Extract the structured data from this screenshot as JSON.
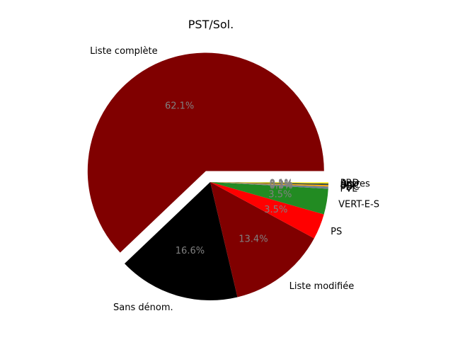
{
  "chart_data": {
    "type": "pie",
    "title": "PST/Sol.",
    "slices": [
      {
        "label": "Liste complète",
        "value": 62.1,
        "pct_label": "62.1%",
        "color": "#800000",
        "explode": true
      },
      {
        "label": "Sans dénom.",
        "value": 16.6,
        "pct_label": "16.6%",
        "color": "#000000",
        "explode": false
      },
      {
        "label": "Liste modifiée",
        "value": 13.4,
        "pct_label": "13.4%",
        "color": "#800000",
        "explode": false
      },
      {
        "label": "PS",
        "value": 3.5,
        "pct_label": "3.5%",
        "color": "#ff0000",
        "explode": false
      },
      {
        "label": "VERT-E-S",
        "value": 3.5,
        "pct_label": "3.5%",
        "color": "#228b22",
        "explode": false
      },
      {
        "label": "PVL",
        "value": 0.3,
        "pct_label": "0.3%",
        "color": "#708090",
        "explode": false
      },
      {
        "label": "PDC",
        "value": 0.2,
        "pct_label": "0.2%",
        "color": "#ffa500",
        "explode": false
      },
      {
        "label": "UDC",
        "value": 0.2,
        "pct_label": "0.2%",
        "color": "#2f4f4f",
        "explode": false
      },
      {
        "label": "Autres",
        "value": 0.1,
        "pct_label": "0.1%",
        "color": "#ffd700",
        "explode": false
      },
      {
        "label": "PBD",
        "value": 0.1,
        "pct_label": "0.1%",
        "color": "#ffff66",
        "explode": false
      }
    ],
    "legend": "none",
    "grid": false
  }
}
